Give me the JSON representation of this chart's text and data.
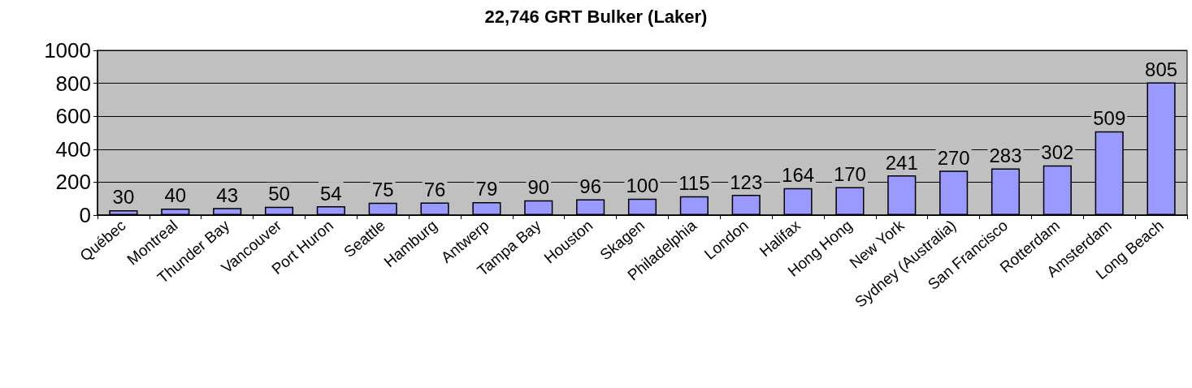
{
  "chart_data": {
    "type": "bar",
    "title": "22,746 GRT Bulker (Laker)",
    "categories": [
      "Québec",
      "Montreal",
      "Thunder Bay",
      "Vancouver",
      "Port Huron",
      "Seattle",
      "Hamburg",
      "Antwerp",
      "Tampa Bay",
      "Houston",
      "Skagen",
      "Philadelphia",
      "London",
      "Halifax",
      "Hong Hong",
      "New York",
      "Sydney (Australia)",
      "San Francisco",
      "Rotterdam",
      "Amsterdam",
      "Long Beach"
    ],
    "values": [
      30,
      40,
      43,
      50,
      54,
      75,
      76,
      79,
      90,
      96,
      100,
      115,
      123,
      164,
      170,
      241,
      270,
      283,
      302,
      509,
      805
    ],
    "color": "#9999ff",
    "ylim": [
      0,
      1000
    ],
    "yticks": [
      0,
      200,
      400,
      600,
      800,
      1000
    ],
    "grid": "y",
    "data_labels": true
  }
}
